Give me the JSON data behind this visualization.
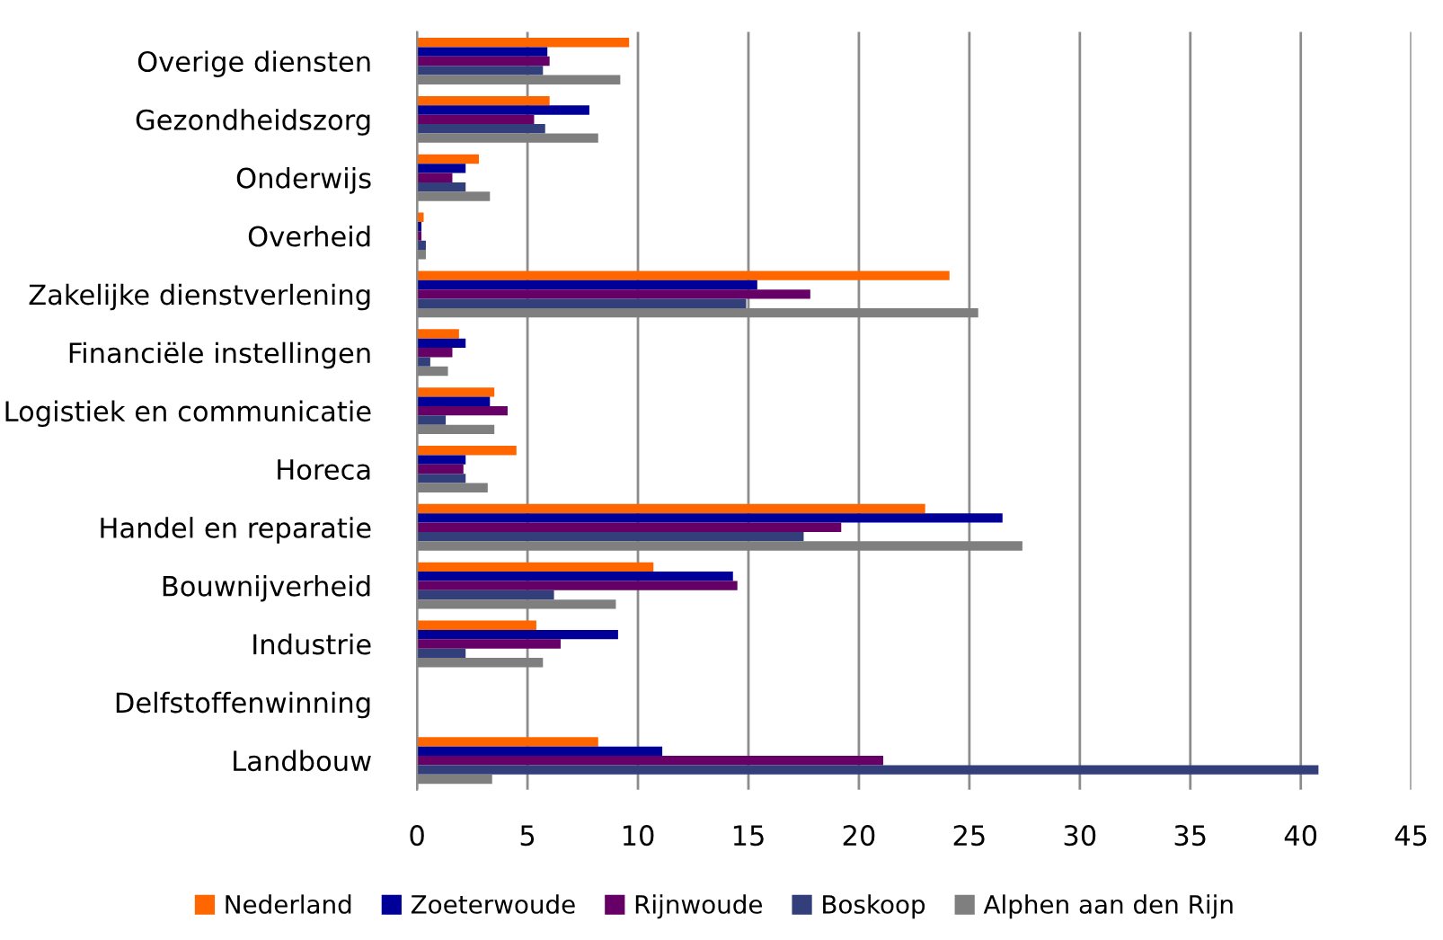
{
  "chart_data": {
    "type": "bar",
    "orientation": "horizontal",
    "categories": [
      "Overige diensten",
      "Gezondheidszorg",
      "Onderwijs",
      "Overheid",
      "Zakelijke dienstverlening",
      "Financiële instellingen",
      "Logistiek en communicatie",
      "Horeca",
      "Handel en reparatie",
      "Bouwnijverheid",
      "Industrie",
      "Delfstoffenwinning",
      "Landbouw"
    ],
    "series": [
      {
        "name": "Nederland",
        "color": "#ff6600",
        "values": [
          9.6,
          6.0,
          2.8,
          0.3,
          24.1,
          1.9,
          3.5,
          4.5,
          23.0,
          10.7,
          5.4,
          0,
          8.2
        ]
      },
      {
        "name": "Zoeterwoude",
        "color": "#000099",
        "values": [
          5.9,
          7.8,
          2.2,
          0.2,
          15.4,
          2.2,
          3.3,
          2.2,
          26.5,
          14.3,
          9.1,
          0,
          11.1
        ]
      },
      {
        "name": "Rijnwoude",
        "color": "#660066",
        "values": [
          6.0,
          5.3,
          1.6,
          0.2,
          17.8,
          1.6,
          4.1,
          2.1,
          19.2,
          14.5,
          6.5,
          0,
          21.1
        ]
      },
      {
        "name": "Boskoop",
        "color": "#333f7a",
        "values": [
          5.7,
          5.8,
          2.2,
          0.4,
          14.9,
          0.6,
          1.3,
          2.2,
          17.5,
          6.2,
          2.2,
          0,
          40.8
        ]
      },
      {
        "name": "Alphen aan den Rijn",
        "color": "#7f7f7f",
        "values": [
          9.2,
          8.2,
          3.3,
          0.4,
          25.4,
          1.4,
          3.5,
          3.2,
          27.4,
          9.0,
          5.7,
          0,
          3.4
        ]
      }
    ],
    "xlim": [
      0,
      45
    ],
    "xticks": [
      0,
      5,
      10,
      15,
      20,
      25,
      30,
      35,
      40,
      45
    ],
    "grid": "x",
    "legend": "bottom"
  }
}
